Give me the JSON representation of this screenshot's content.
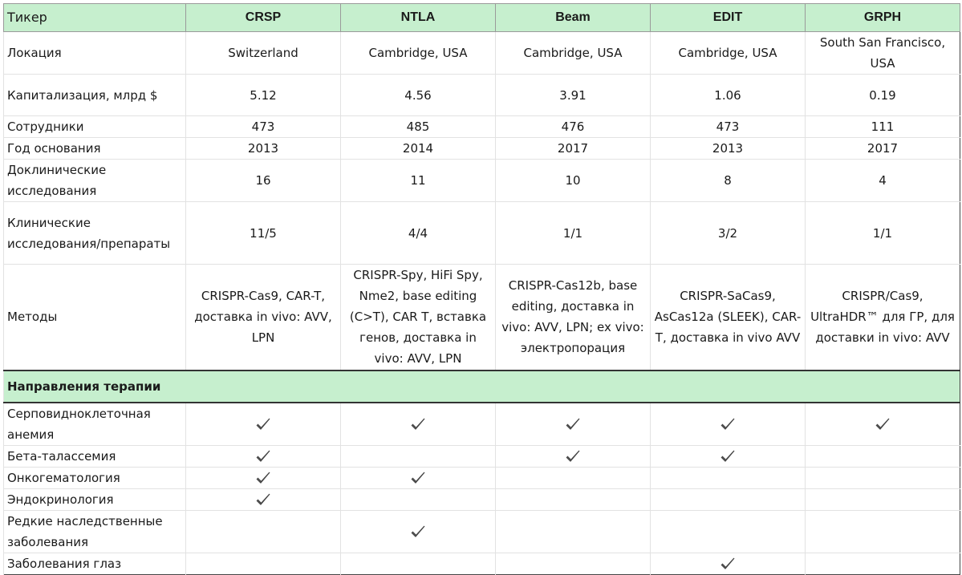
{
  "table": {
    "header": {
      "label": "Тикер",
      "companies": [
        "CRSP",
        "NTLA",
        "Beam",
        "EDIT",
        "GRPH"
      ]
    },
    "info_rows": [
      {
        "label": "Локация",
        "values": [
          "Switzerland",
          "Cambridge, USA",
          "Cambridge, USA",
          "Cambridge, USA",
          "South San Francisco, USA"
        ]
      },
      {
        "label": "Капитализация, млрд $",
        "values": [
          "5.12",
          "4.56",
          "3.91",
          "1.06",
          "0.19"
        ]
      },
      {
        "label": "Сотрудники",
        "values": [
          "473",
          "485",
          "476",
          "473",
          "111"
        ]
      },
      {
        "label": "Год основания",
        "values": [
          "2013",
          "2014",
          "2017",
          "2013",
          "2017"
        ]
      },
      {
        "label": "Доклинические исследования",
        "values": [
          "16",
          "11",
          "10",
          "8",
          "4"
        ]
      },
      {
        "label": "Клинические исследования/препараты",
        "values": [
          "11/5",
          "4/4",
          "1/1",
          "3/2",
          "1/1"
        ]
      },
      {
        "label": "Методы",
        "values": [
          "CRISPR-Cas9, CAR-T, доставка in vivo: AVV, LPN",
          "CRISPR-Spy, HiFi Spy, Nme2, base editing (C>T), CAR T, вставка генов, доставка in vivo: AVV, LPN",
          "CRISPR-Cas12b, base editing, доставка in vivo: AVV, LPN; ex vivo: электропорация",
          "CRISPR-SaCas9, AsCas12a (SLEEK), CAR-T, доставка in vivo AVV",
          "CRISPR/Cas9, UltraHDR™ для ГР, для доставки in vivo: AVV"
        ]
      }
    ],
    "section_title": "Направления терапии",
    "therapy_rows": [
      {
        "label": "Серповидноклеточная анемия",
        "checks": [
          true,
          true,
          true,
          true,
          true
        ]
      },
      {
        "label": "Бета-талассемия",
        "checks": [
          true,
          false,
          true,
          true,
          false
        ]
      },
      {
        "label": "Онкогематология",
        "checks": [
          true,
          true,
          false,
          false,
          false
        ]
      },
      {
        "label": "Эндокринология",
        "checks": [
          true,
          false,
          false,
          false,
          false
        ]
      },
      {
        "label": "Редкие наследственные заболевания",
        "checks": [
          false,
          true,
          false,
          false,
          false
        ]
      },
      {
        "label": "Заболевания глаз",
        "checks": [
          false,
          false,
          false,
          true,
          false
        ]
      }
    ],
    "check_icon": "checkmark-icon",
    "colors": {
      "header_bg": "#c6efce",
      "section_bg": "#c6efce"
    }
  }
}
